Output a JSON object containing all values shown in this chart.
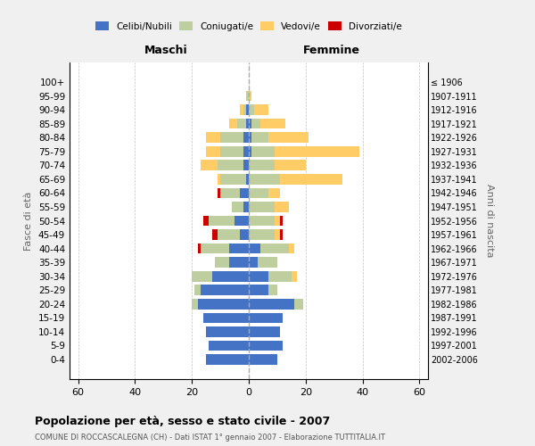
{
  "age_groups": [
    "0-4",
    "5-9",
    "10-14",
    "15-19",
    "20-24",
    "25-29",
    "30-34",
    "35-39",
    "40-44",
    "45-49",
    "50-54",
    "55-59",
    "60-64",
    "65-69",
    "70-74",
    "75-79",
    "80-84",
    "85-89",
    "90-94",
    "95-99",
    "100+"
  ],
  "birth_years": [
    "2002-2006",
    "1997-2001",
    "1992-1996",
    "1987-1991",
    "1982-1986",
    "1977-1981",
    "1972-1976",
    "1967-1971",
    "1962-1966",
    "1957-1961",
    "1952-1956",
    "1947-1951",
    "1942-1946",
    "1937-1941",
    "1932-1936",
    "1927-1931",
    "1922-1926",
    "1917-1921",
    "1912-1916",
    "1907-1911",
    "≤ 1906"
  ],
  "maschi_celibi": [
    15,
    14,
    15,
    16,
    18,
    17,
    13,
    7,
    7,
    3,
    5,
    2,
    3,
    1,
    2,
    2,
    2,
    1,
    1,
    0,
    0
  ],
  "maschi_coniugati": [
    0,
    0,
    0,
    0,
    2,
    2,
    7,
    5,
    10,
    8,
    9,
    4,
    7,
    9,
    9,
    8,
    8,
    3,
    1,
    1,
    0
  ],
  "maschi_vedovi": [
    0,
    0,
    0,
    0,
    0,
    0,
    0,
    0,
    0,
    0,
    0,
    0,
    0,
    1,
    6,
    5,
    5,
    3,
    1,
    0,
    0
  ],
  "maschi_divorziati": [
    0,
    0,
    0,
    0,
    0,
    0,
    0,
    0,
    1,
    2,
    2,
    0,
    1,
    0,
    0,
    0,
    0,
    0,
    0,
    0,
    0
  ],
  "femmine_nubili": [
    10,
    12,
    11,
    12,
    16,
    7,
    7,
    3,
    4,
    0,
    0,
    0,
    0,
    0,
    0,
    1,
    1,
    1,
    0,
    0,
    0
  ],
  "femmine_coniugate": [
    0,
    0,
    0,
    0,
    3,
    3,
    8,
    7,
    10,
    9,
    9,
    9,
    7,
    11,
    9,
    8,
    6,
    3,
    2,
    0,
    0
  ],
  "femmine_vedove": [
    0,
    0,
    0,
    0,
    0,
    0,
    2,
    0,
    2,
    2,
    2,
    5,
    4,
    22,
    11,
    30,
    14,
    9,
    5,
    1,
    0
  ],
  "femmine_divorziate": [
    0,
    0,
    0,
    0,
    0,
    0,
    0,
    0,
    0,
    1,
    1,
    0,
    0,
    0,
    0,
    0,
    0,
    0,
    0,
    0,
    0
  ],
  "color_celibi": "#4472C4",
  "color_coniugati": "#BFCE9E",
  "color_vedovi": "#FFCC66",
  "color_divorziati": "#CC0000",
  "xlim": [
    -63,
    63
  ],
  "xticks": [
    -60,
    -40,
    -20,
    0,
    20,
    40,
    60
  ],
  "xticklabels": [
    "60",
    "40",
    "20",
    "0",
    "20",
    "40",
    "60"
  ],
  "title": "Popolazione per età, sesso e stato civile - 2007",
  "subtitle": "COMUNE DI ROCCASCALEGNA (CH) - Dati ISTAT 1° gennaio 2007 - Elaborazione TUTTITALIA.IT",
  "ylabel_left": "Fasce di età",
  "ylabel_right": "Anni di nascita",
  "label_maschi": "Maschi",
  "label_femmine": "Femmine",
  "legend_labels": [
    "Celibi/Nubili",
    "Coniugati/e",
    "Vedovi/e",
    "Divorziati/e"
  ],
  "bg_color": "#f0f0f0",
  "plot_bg": "#ffffff",
  "bar_height": 0.75
}
